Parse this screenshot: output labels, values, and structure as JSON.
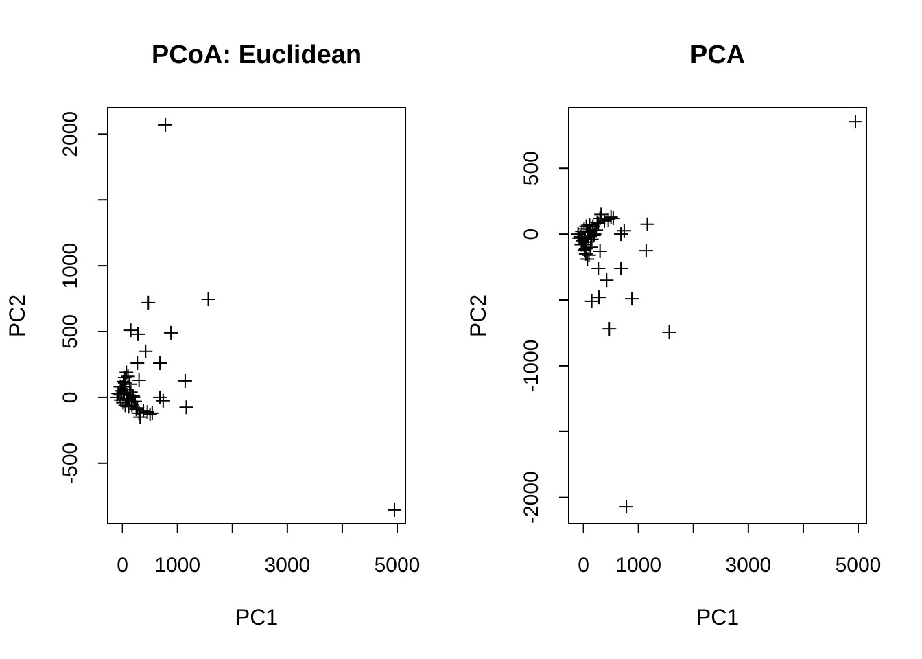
{
  "chart_data": [
    {
      "type": "scatter",
      "title": "PCoA: Euclidean",
      "xlabel": "PC1",
      "ylabel": "PC2",
      "xlim": [
        -270,
        5150
      ],
      "ylim": [
        -960,
        2200
      ],
      "xticks": [
        0,
        1000,
        2000,
        3000,
        4000,
        5000
      ],
      "xtick_labels": [
        "0",
        "1000",
        "",
        "3000",
        "",
        "5000"
      ],
      "yticks": [
        -500,
        0,
        500,
        1000,
        1500,
        2000
      ],
      "ytick_labels": [
        "-500",
        "0",
        "500",
        "1000",
        "",
        "2000"
      ],
      "marker": "+",
      "grid": false,
      "points": [
        [
          4950,
          -855
        ],
        [
          780,
          2070
        ],
        [
          1560,
          745
        ],
        [
          470,
          720
        ],
        [
          880,
          490
        ],
        [
          150,
          510
        ],
        [
          280,
          480
        ],
        [
          420,
          350
        ],
        [
          270,
          260
        ],
        [
          680,
          260
        ],
        [
          1140,
          125
        ],
        [
          1160,
          -75
        ],
        [
          680,
          0
        ],
        [
          740,
          -25
        ],
        [
          300,
          130
        ],
        [
          -100,
          0
        ],
        [
          -60,
          20
        ],
        [
          -20,
          50
        ],
        [
          0,
          80
        ],
        [
          20,
          120
        ],
        [
          40,
          150
        ],
        [
          70,
          190
        ],
        [
          100,
          160
        ],
        [
          130,
          100
        ],
        [
          60,
          60
        ],
        [
          30,
          30
        ],
        [
          90,
          20
        ],
        [
          150,
          40
        ],
        [
          200,
          0
        ],
        [
          230,
          -30
        ],
        [
          -30,
          -20
        ],
        [
          10,
          -40
        ],
        [
          50,
          -60
        ],
        [
          110,
          -70
        ],
        [
          170,
          -60
        ],
        [
          250,
          -90
        ],
        [
          300,
          -120
        ],
        [
          320,
          -150
        ],
        [
          380,
          -100
        ],
        [
          450,
          -110
        ],
        [
          500,
          -130
        ],
        [
          540,
          -120
        ],
        [
          270,
          -80
        ],
        [
          190,
          10
        ],
        [
          120,
          -20
        ],
        [
          -80,
          30
        ],
        [
          -40,
          80
        ],
        [
          40,
          110
        ],
        [
          80,
          -10
        ],
        [
          160,
          -30
        ]
      ]
    },
    {
      "type": "scatter",
      "title": "PCA",
      "xlabel": "PC1",
      "ylabel": "PC2",
      "xlim": [
        -270,
        5150
      ],
      "ylim": [
        -2200,
        960
      ],
      "xticks": [
        0,
        1000,
        2000,
        3000,
        4000,
        5000
      ],
      "xtick_labels": [
        "0",
        "1000",
        "",
        "3000",
        "",
        "5000"
      ],
      "yticks": [
        -2000,
        -1500,
        -1000,
        -500,
        0,
        500
      ],
      "ytick_labels": [
        "-2000",
        "",
        "-1000",
        "",
        "0",
        "500"
      ],
      "marker": "+",
      "grid": false,
      "points": [
        [
          4950,
          855
        ],
        [
          780,
          -2070
        ],
        [
          1560,
          -745
        ],
        [
          470,
          -720
        ],
        [
          880,
          -490
        ],
        [
          150,
          -510
        ],
        [
          280,
          -480
        ],
        [
          420,
          -350
        ],
        [
          270,
          -260
        ],
        [
          680,
          -260
        ],
        [
          1140,
          -125
        ],
        [
          1160,
          75
        ],
        [
          680,
          0
        ],
        [
          740,
          25
        ],
        [
          300,
          -130
        ],
        [
          -100,
          0
        ],
        [
          -60,
          -20
        ],
        [
          -20,
          -50
        ],
        [
          0,
          -80
        ],
        [
          20,
          -120
        ],
        [
          40,
          -150
        ],
        [
          70,
          -190
        ],
        [
          100,
          -160
        ],
        [
          130,
          -100
        ],
        [
          60,
          -60
        ],
        [
          30,
          -30
        ],
        [
          90,
          -20
        ],
        [
          150,
          -40
        ],
        [
          200,
          0
        ],
        [
          230,
          30
        ],
        [
          -30,
          20
        ],
        [
          10,
          40
        ],
        [
          50,
          60
        ],
        [
          110,
          70
        ],
        [
          170,
          60
        ],
        [
          250,
          90
        ],
        [
          300,
          120
        ],
        [
          320,
          150
        ],
        [
          380,
          100
        ],
        [
          450,
          110
        ],
        [
          500,
          130
        ],
        [
          540,
          120
        ],
        [
          270,
          80
        ],
        [
          190,
          -10
        ],
        [
          120,
          20
        ],
        [
          -80,
          -30
        ],
        [
          -40,
          -80
        ],
        [
          40,
          -110
        ],
        [
          80,
          10
        ],
        [
          160,
          30
        ]
      ]
    }
  ]
}
